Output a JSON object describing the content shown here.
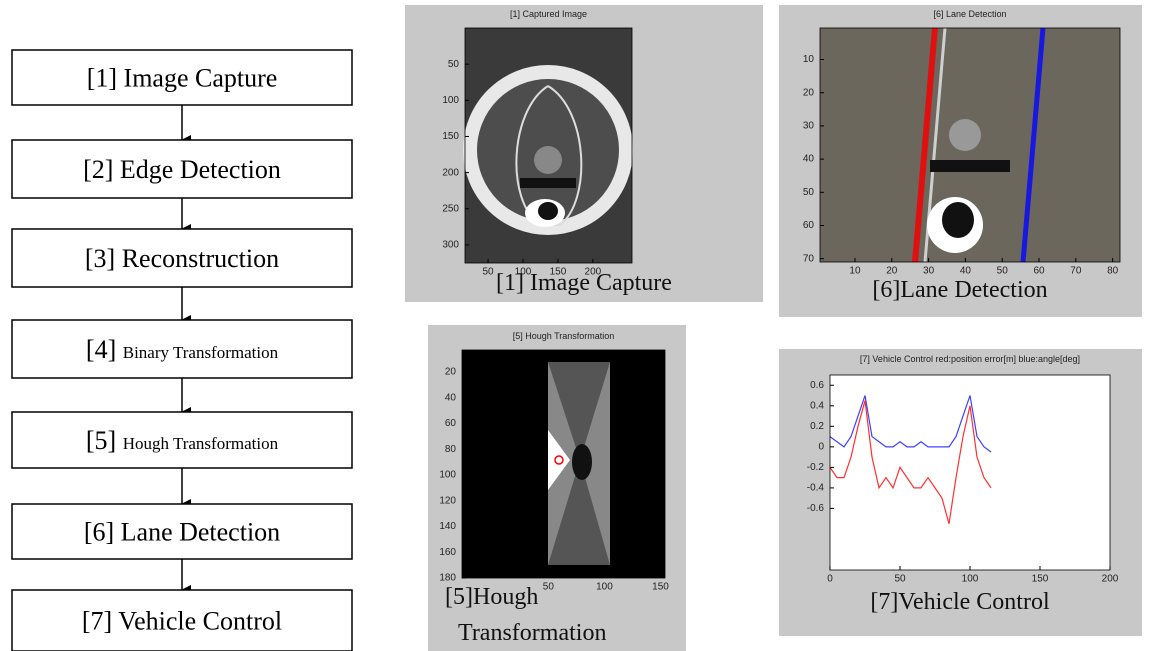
{
  "flowchart": {
    "nodes": [
      {
        "number": "[1]",
        "label": "Image Capture"
      },
      {
        "number": "[2]",
        "label": "Edge Detection"
      },
      {
        "number": "[3]",
        "label": "Reconstruction"
      },
      {
        "number": "[4]",
        "label": "Binary Transformation"
      },
      {
        "number": "[5]",
        "label": "Hough Transformation"
      },
      {
        "number": "[6]",
        "label": "Lane Detection"
      },
      {
        "number": "[7]",
        "label": "Vehicle Control"
      }
    ]
  },
  "panels": [
    {
      "title": "[1] Captured Image",
      "caption": [
        "[1] Image Capture"
      ],
      "y_reversed": true,
      "xlim": [
        17,
        256
      ],
      "ylim": [
        0,
        325
      ],
      "xticks": [
        50,
        100,
        150,
        200
      ],
      "yticks": [
        50,
        100,
        150,
        200,
        250,
        300
      ]
    },
    {
      "title": "[6] Lane Detection",
      "caption": [
        "[6]Lane Detection"
      ],
      "y_reversed": true,
      "xlim": [
        0.5,
        82
      ],
      "ylim": [
        0.5,
        71
      ],
      "xticks": [
        10,
        20,
        30,
        40,
        50,
        60,
        70,
        80
      ],
      "yticks": [
        10,
        20,
        30,
        40,
        50,
        60,
        70
      ]
    },
    {
      "title": "[5] Hough Transformation",
      "caption": [
        "[5]Hough",
        "Transformation"
      ],
      "y_reversed": true,
      "xlim": [
        -27,
        154
      ],
      "ylim": [
        3,
        180
      ],
      "xticks": [
        50,
        100,
        150
      ],
      "yticks": [
        20,
        40,
        60,
        80,
        100,
        120,
        140,
        160,
        180
      ]
    },
    {
      "type": "line",
      "title": "[7] Vehicle Control  red:position error[m] blue:angle[deg]",
      "caption": [
        "[7]Vehicle Control"
      ],
      "y_reversed": false,
      "xlim": [
        0,
        200
      ],
      "ylim": [
        -1.2,
        0.7
      ],
      "xticks": [
        0,
        50,
        100,
        150,
        200
      ],
      "yticks": [
        0.6,
        0.4,
        0.2,
        0,
        -0.2,
        -0.4,
        -0.6
      ],
      "x": [
        0,
        5,
        10,
        15,
        20,
        25,
        30,
        35,
        40,
        45,
        50,
        55,
        60,
        65,
        70,
        75,
        80,
        85,
        90,
        95,
        100,
        105,
        110,
        115
      ],
      "series": [
        {
          "color": "#4040ff",
          "values": [
            0.1,
            0.05,
            0.0,
            0.1,
            0.3,
            0.5,
            0.1,
            0.05,
            0.0,
            0.0,
            0.05,
            0.0,
            0.0,
            0.05,
            0.0,
            0.0,
            0.0,
            0.0,
            0.1,
            0.3,
            0.5,
            0.1,
            0.0,
            -0.05
          ]
        },
        {
          "color": "#ff3030",
          "values": [
            -0.2,
            -0.3,
            -0.3,
            -0.1,
            0.2,
            0.45,
            -0.1,
            -0.4,
            -0.3,
            -0.4,
            -0.2,
            -0.3,
            -0.4,
            -0.4,
            -0.3,
            -0.4,
            -0.5,
            -0.75,
            -0.3,
            0.1,
            0.4,
            -0.1,
            -0.3,
            -0.4
          ]
        }
      ]
    }
  ]
}
